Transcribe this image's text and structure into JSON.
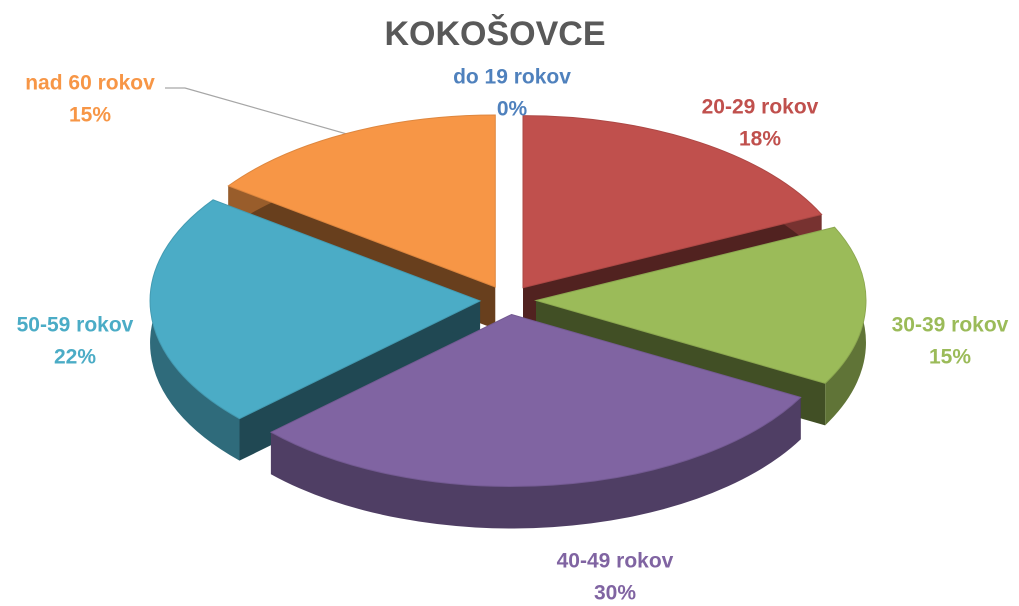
{
  "chart_data": {
    "type": "pie3d",
    "title": "KOKOŠOVCE",
    "categories": [
      "do 19 rokov",
      "20-29 rokov",
      "30-39 rokov",
      "40-49 rokov",
      "50-59 rokov",
      "nad 60 rokov"
    ],
    "values": [
      0,
      18,
      15,
      30,
      22,
      15
    ],
    "value_labels": [
      "0%",
      "18%",
      "15%",
      "30%",
      "22%",
      "15%"
    ],
    "colors": [
      "#4f81bd",
      "#c0504d",
      "#9bbb59",
      "#8064a2",
      "#4bacc6",
      "#f79646"
    ]
  }
}
